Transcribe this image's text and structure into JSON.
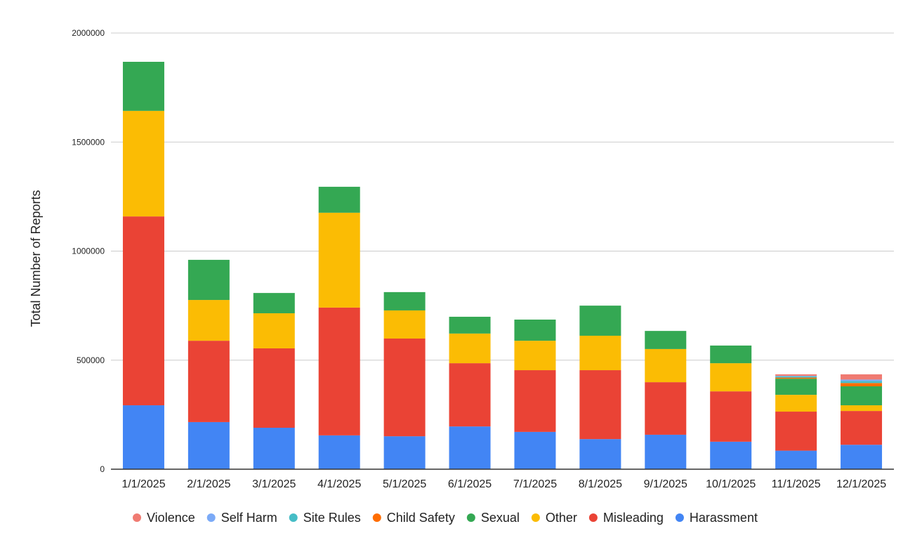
{
  "chart_data": {
    "type": "bar",
    "stacked": true,
    "title": "",
    "xlabel": "",
    "ylabel": "Total Number of Reports",
    "ylim": [
      0,
      2000000
    ],
    "yticks": [
      0,
      500000,
      1000000,
      1500000,
      2000000
    ],
    "ytick_labels": [
      "0",
      "500000",
      "1000000",
      "1500000",
      "2000000"
    ],
    "grid": true,
    "legend_position": "bottom",
    "categories": [
      "1/1/2025",
      "2/1/2025",
      "3/1/2025",
      "4/1/2025",
      "5/1/2025",
      "6/1/2025",
      "7/1/2025",
      "8/1/2025",
      "9/1/2025",
      "10/1/2025",
      "11/1/2025",
      "12/1/2025"
    ],
    "series": [
      {
        "name": "Harassment",
        "color": "#4285f4",
        "values": [
          293000,
          216000,
          190000,
          155000,
          151000,
          196000,
          171000,
          138000,
          158000,
          126000,
          85000,
          112000
        ]
      },
      {
        "name": "Misleading",
        "color": "#ea4335",
        "values": [
          866000,
          373000,
          364000,
          586000,
          448000,
          290000,
          283000,
          316000,
          241000,
          231000,
          179000,
          155000
        ]
      },
      {
        "name": "Other",
        "color": "#fbbc04",
        "values": [
          484000,
          187000,
          161000,
          435000,
          129000,
          136000,
          135000,
          158000,
          152000,
          129000,
          77000,
          26000
        ]
      },
      {
        "name": "Sexual",
        "color": "#34a853",
        "values": [
          225000,
          184000,
          93000,
          119000,
          84000,
          77000,
          97000,
          138000,
          83000,
          81000,
          74000,
          87000
        ]
      },
      {
        "name": "Child Safety",
        "color": "#ff6d01",
        "values": [
          0,
          0,
          0,
          0,
          0,
          0,
          0,
          0,
          0,
          0,
          5000,
          15000
        ]
      },
      {
        "name": "Site Rules",
        "color": "#46bdc6",
        "values": [
          0,
          0,
          0,
          0,
          0,
          0,
          0,
          0,
          0,
          0,
          6000,
          9000
        ]
      },
      {
        "name": "Self Harm",
        "color": "#7baaf7",
        "values": [
          0,
          0,
          0,
          0,
          0,
          0,
          0,
          0,
          0,
          0,
          2000,
          7000
        ]
      },
      {
        "name": "Violence",
        "color": "#f07b72",
        "values": [
          0,
          0,
          0,
          0,
          0,
          0,
          0,
          0,
          0,
          0,
          7000,
          24000
        ]
      }
    ],
    "legend_order": [
      "Violence",
      "Self Harm",
      "Site Rules",
      "Child Safety",
      "Sexual",
      "Other",
      "Misleading",
      "Harassment"
    ]
  }
}
